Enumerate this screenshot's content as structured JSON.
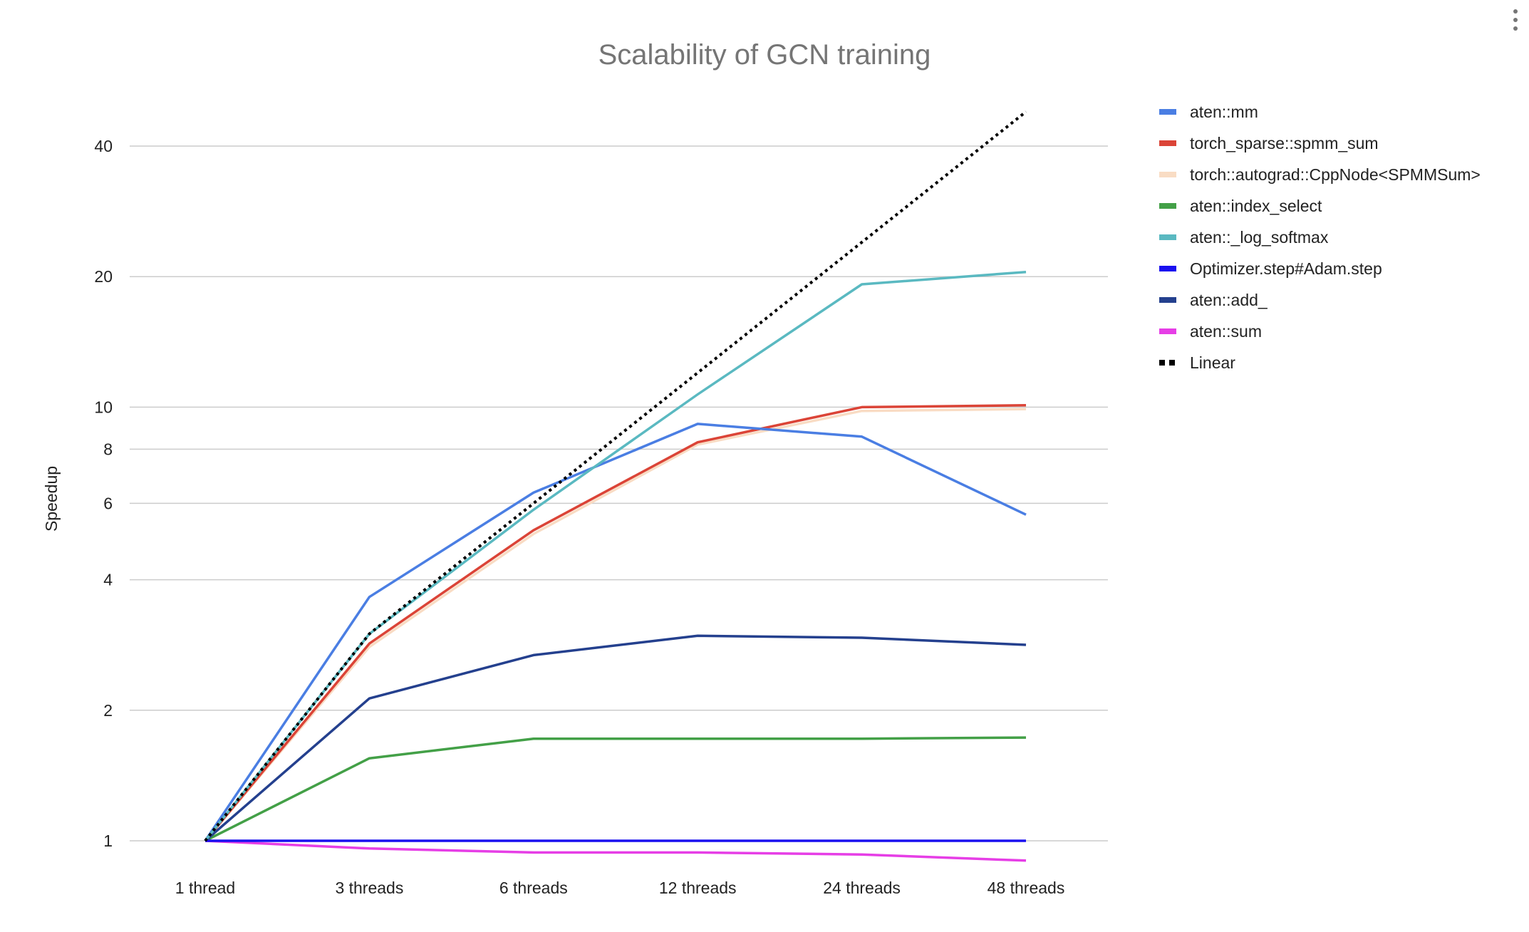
{
  "chart_data": {
    "type": "line",
    "title": "Scalability of GCN training",
    "xlabel": "",
    "ylabel": "Speedup",
    "y_scale": "log",
    "ylim": [
      0.85,
      48
    ],
    "y_ticks": [
      1,
      2,
      4,
      6,
      8,
      10,
      20,
      40
    ],
    "grid": true,
    "legend_position": "right",
    "categories": [
      "1 thread",
      "3 threads",
      "6 threads",
      "12 threads",
      "24 threads",
      "48 threads"
    ],
    "series": [
      {
        "name": "aten::mm",
        "color": "#4a7ee3",
        "dash": "solid",
        "values": [
          1,
          3.65,
          6.35,
          9.15,
          8.55,
          5.65
        ]
      },
      {
        "name": "torch_sparse::spmm_sum",
        "color": "#db4437",
        "dash": "solid",
        "values": [
          1,
          2.85,
          5.2,
          8.3,
          10.0,
          10.1
        ]
      },
      {
        "name": "torch::autograd::CppNode<SPMMSum>",
        "color": "#f9dcc4",
        "dash": "solid",
        "values": [
          1,
          2.8,
          5.1,
          8.2,
          9.8,
          9.9
        ]
      },
      {
        "name": "aten::index_select",
        "color": "#43a047",
        "dash": "solid",
        "values": [
          1,
          1.55,
          1.72,
          1.72,
          1.72,
          1.73
        ]
      },
      {
        "name": "aten::_log_softmax",
        "color": "#5ab9c1",
        "dash": "solid",
        "values": [
          1,
          3.0,
          5.8,
          10.7,
          19.2,
          20.5
        ]
      },
      {
        "name": "Optimizer.step#Adam.step",
        "color": "#1a10f0",
        "dash": "solid",
        "values": [
          1,
          1,
          1,
          1,
          1,
          1
        ]
      },
      {
        "name": "aten::add_",
        "color": "#24408e",
        "dash": "solid",
        "values": [
          1,
          2.13,
          2.68,
          2.97,
          2.94,
          2.83
        ]
      },
      {
        "name": "aten::sum",
        "color": "#e63ee6",
        "dash": "solid",
        "values": [
          1,
          0.96,
          0.94,
          0.94,
          0.93,
          0.9
        ]
      },
      {
        "name": "Linear",
        "color": "#000000",
        "dash": "dotted",
        "values": [
          1,
          3,
          6,
          12,
          24,
          48
        ]
      }
    ]
  }
}
